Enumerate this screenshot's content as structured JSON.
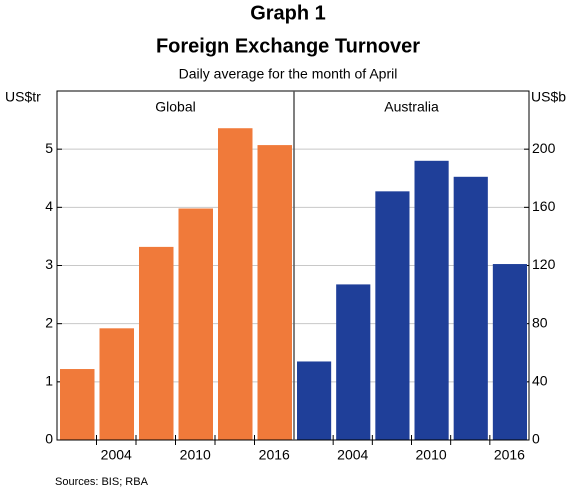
{
  "title": "Graph 1",
  "subtitle": "Foreign Exchange Turnover",
  "description": "Daily average for the month of April",
  "source": "Sources:  BIS; RBA",
  "chart_data": [
    {
      "type": "bar",
      "title": "Global",
      "ylabel": "US$tr",
      "categories": [
        null,
        "2004",
        null,
        "2010",
        null,
        "2016"
      ],
      "values": [
        1.22,
        1.92,
        3.32,
        3.98,
        5.36,
        5.07
      ],
      "color": "#f07a3a",
      "ylim": [
        0,
        6
      ],
      "yticks": [
        0,
        1,
        2,
        3,
        4,
        5
      ],
      "grid": true,
      "axis_side": "left"
    },
    {
      "type": "bar",
      "title": "Australia",
      "ylabel": "US$b",
      "categories": [
        null,
        "2004",
        null,
        "2010",
        null,
        "2016"
      ],
      "values": [
        54,
        107,
        171,
        192,
        181,
        121
      ],
      "color": "#1f3f99",
      "ylim": [
        0,
        240
      ],
      "yticks": [
        0,
        40,
        80,
        120,
        160,
        200
      ],
      "grid": true,
      "axis_side": "right"
    }
  ]
}
